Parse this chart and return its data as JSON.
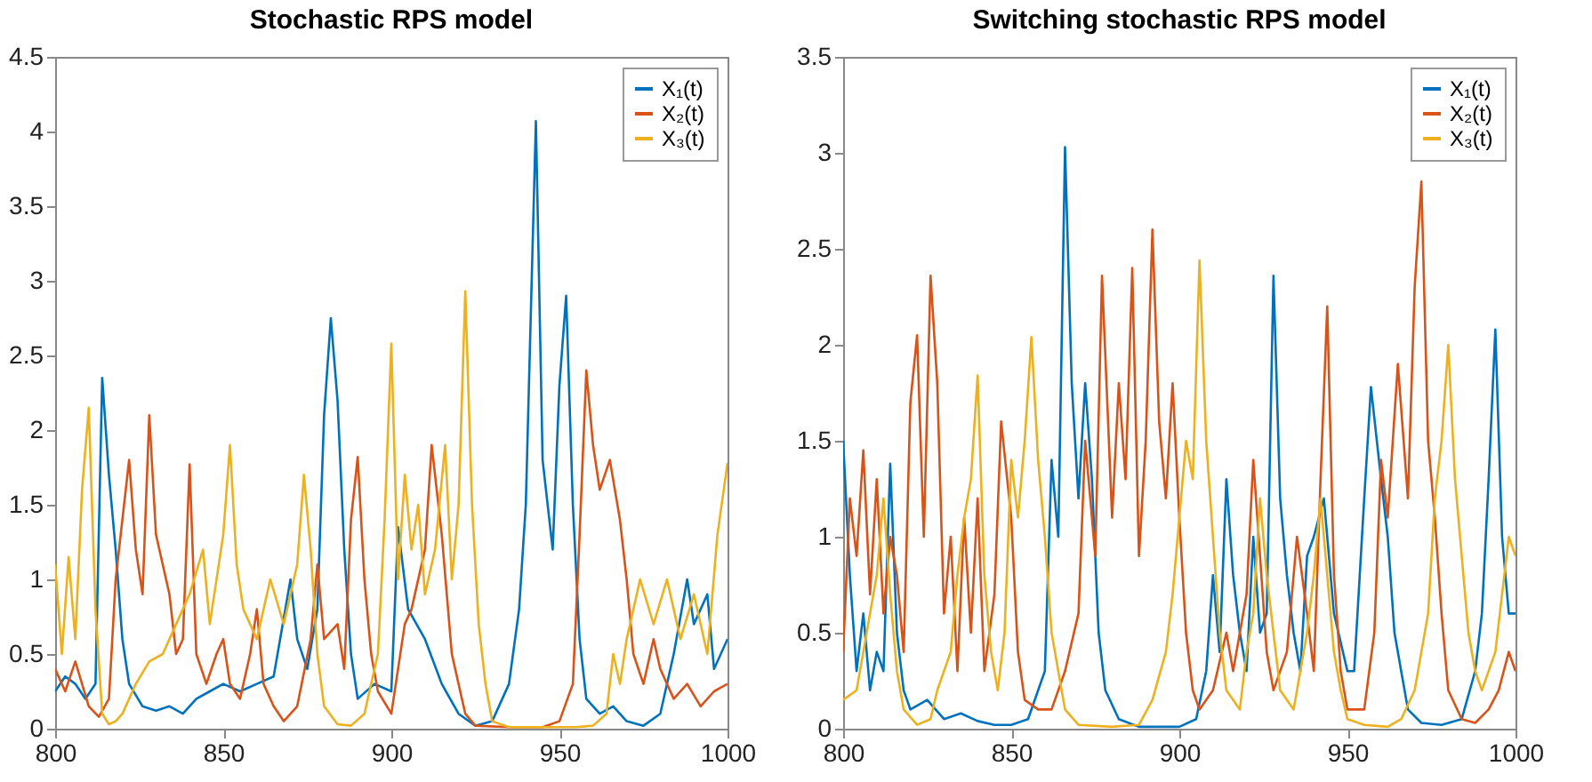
{
  "chart_data": [
    {
      "type": "line",
      "title": "Stochastic RPS model",
      "xlim": [
        800,
        1000
      ],
      "xticks": [
        800,
        850,
        900,
        950,
        1000
      ],
      "ylim": [
        0,
        4.5
      ],
      "yticks": [
        0,
        0.5,
        1,
        1.5,
        2,
        2.5,
        3,
        3.5,
        4,
        4.5
      ],
      "grid": false,
      "legend": "top right",
      "series": [
        {
          "name": "X₁(t)",
          "color": "#0072bd",
          "x": [
            800,
            803,
            806,
            809,
            812,
            814,
            816,
            818,
            820,
            822,
            826,
            830,
            834,
            838,
            842,
            846,
            850,
            855,
            860,
            865,
            870,
            872,
            875,
            878,
            880,
            882,
            884,
            886,
            888,
            890,
            895,
            900,
            902,
            905,
            910,
            915,
            920,
            925,
            930,
            935,
            938,
            940,
            943,
            945,
            948,
            950,
            952,
            954,
            956,
            958,
            962,
            966,
            970,
            975,
            980,
            984,
            988,
            990,
            994,
            996,
            1000
          ],
          "values": [
            0.25,
            0.35,
            0.3,
            0.2,
            0.3,
            2.35,
            1.7,
            1.2,
            0.6,
            0.3,
            0.15,
            0.12,
            0.15,
            0.1,
            0.2,
            0.25,
            0.3,
            0.25,
            0.3,
            0.35,
            1.0,
            0.6,
            0.4,
            0.8,
            2.1,
            2.75,
            2.2,
            1.2,
            0.5,
            0.2,
            0.3,
            0.25,
            1.35,
            0.8,
            0.6,
            0.3,
            0.1,
            0.02,
            0.05,
            0.3,
            0.8,
            1.5,
            4.07,
            1.8,
            1.2,
            2.3,
            2.9,
            1.5,
            0.6,
            0.2,
            0.1,
            0.15,
            0.05,
            0.02,
            0.1,
            0.5,
            1.0,
            0.7,
            0.9,
            0.4,
            0.6
          ]
        },
        {
          "name": "X₂(t)",
          "color": "#d95319",
          "x": [
            800,
            803,
            806,
            810,
            813,
            816,
            818,
            820,
            822,
            824,
            826,
            828,
            830,
            832,
            834,
            836,
            838,
            840,
            842,
            845,
            848,
            850,
            852,
            855,
            858,
            860,
            862,
            865,
            868,
            872,
            876,
            878,
            880,
            884,
            886,
            888,
            890,
            892,
            894,
            896,
            900,
            904,
            906,
            910,
            912,
            915,
            918,
            920,
            922,
            925,
            935,
            945,
            950,
            954,
            956,
            958,
            960,
            962,
            965,
            968,
            970,
            972,
            975,
            978,
            980,
            984,
            988,
            992,
            996,
            1000
          ],
          "values": [
            0.4,
            0.25,
            0.45,
            0.15,
            0.08,
            0.2,
            1.0,
            1.4,
            1.8,
            1.2,
            0.9,
            2.1,
            1.3,
            1.1,
            0.9,
            0.5,
            0.6,
            1.77,
            0.5,
            0.3,
            0.5,
            0.6,
            0.3,
            0.2,
            0.5,
            0.8,
            0.3,
            0.15,
            0.05,
            0.15,
            0.6,
            1.1,
            0.6,
            0.7,
            0.4,
            1.4,
            1.82,
            1.0,
            0.5,
            0.25,
            0.1,
            0.7,
            0.8,
            1.2,
            1.9,
            1.3,
            0.5,
            0.3,
            0.1,
            0.02,
            0.01,
            0.01,
            0.05,
            0.3,
            1.3,
            2.4,
            1.9,
            1.6,
            1.8,
            1.4,
            1.0,
            0.5,
            0.3,
            0.6,
            0.4,
            0.2,
            0.3,
            0.15,
            0.25,
            0.3
          ]
        },
        {
          "name": "X₃(t)",
          "color": "#edb120",
          "x": [
            800,
            802,
            804,
            806,
            808,
            810,
            812,
            814,
            816,
            818,
            820,
            824,
            828,
            832,
            836,
            840,
            844,
            846,
            850,
            852,
            854,
            856,
            860,
            864,
            868,
            872,
            874,
            876,
            878,
            880,
            884,
            888,
            892,
            896,
            898,
            900,
            902,
            904,
            906,
            908,
            910,
            913,
            916,
            918,
            920,
            922,
            924,
            926,
            928,
            930,
            935,
            945,
            955,
            960,
            964,
            966,
            968,
            970,
            974,
            978,
            982,
            986,
            990,
            994,
            997,
            1000
          ],
          "values": [
            1.1,
            0.5,
            1.15,
            0.6,
            1.6,
            2.15,
            0.8,
            0.1,
            0.03,
            0.05,
            0.1,
            0.3,
            0.45,
            0.5,
            0.7,
            0.9,
            1.2,
            0.7,
            1.3,
            1.9,
            1.1,
            0.8,
            0.6,
            1.0,
            0.7,
            1.1,
            1.7,
            1.2,
            0.5,
            0.15,
            0.03,
            0.02,
            0.1,
            0.5,
            1.4,
            2.58,
            1.0,
            1.7,
            1.2,
            1.5,
            0.9,
            1.2,
            1.9,
            1.0,
            1.5,
            2.93,
            1.5,
            0.7,
            0.3,
            0.05,
            0.01,
            0.01,
            0.01,
            0.02,
            0.1,
            0.5,
            0.3,
            0.6,
            1.0,
            0.7,
            1.0,
            0.6,
            0.9,
            0.5,
            1.3,
            1.78
          ]
        }
      ]
    },
    {
      "type": "line",
      "title": "Switching stochastic RPS model",
      "xlim": [
        800,
        1000
      ],
      "xticks": [
        800,
        850,
        900,
        950,
        1000
      ],
      "ylim": [
        0,
        3.5
      ],
      "yticks": [
        0,
        0.5,
        1,
        1.5,
        2,
        2.5,
        3,
        3.5
      ],
      "grid": false,
      "legend": "top right",
      "series": [
        {
          "name": "X₁(t)",
          "color": "#0072bd",
          "x": [
            800,
            802,
            804,
            806,
            808,
            810,
            812,
            814,
            816,
            818,
            820,
            825,
            830,
            835,
            840,
            845,
            850,
            855,
            860,
            862,
            864,
            866,
            868,
            870,
            872,
            874,
            876,
            878,
            882,
            888,
            895,
            900,
            905,
            908,
            910,
            912,
            914,
            916,
            918,
            920,
            922,
            924,
            926,
            928,
            930,
            932,
            934,
            936,
            938,
            940,
            943,
            946,
            950,
            952,
            955,
            957,
            960,
            962,
            964,
            966,
            968,
            972,
            978,
            984,
            988,
            990,
            992,
            994,
            996,
            998,
            1000
          ],
          "values": [
            1.5,
            0.8,
            0.3,
            0.6,
            0.2,
            0.4,
            0.3,
            1.38,
            0.5,
            0.2,
            0.1,
            0.15,
            0.05,
            0.08,
            0.04,
            0.02,
            0.02,
            0.05,
            0.3,
            1.4,
            1.0,
            3.03,
            1.8,
            1.2,
            1.8,
            1.3,
            0.5,
            0.2,
            0.05,
            0.01,
            0.01,
            0.01,
            0.05,
            0.3,
            0.8,
            0.4,
            1.3,
            0.8,
            0.5,
            0.3,
            1.0,
            0.5,
            0.6,
            2.36,
            1.2,
            0.8,
            0.5,
            0.3,
            0.9,
            1.0,
            1.2,
            0.6,
            0.3,
            0.3,
            1.2,
            1.78,
            1.3,
            1.0,
            0.5,
            0.3,
            0.1,
            0.03,
            0.02,
            0.05,
            0.3,
            0.6,
            1.3,
            2.08,
            1.0,
            0.6,
            0.6
          ]
        },
        {
          "name": "X₂(t)",
          "color": "#d95319",
          "x": [
            800,
            802,
            804,
            806,
            808,
            810,
            812,
            814,
            816,
            818,
            820,
            822,
            824,
            826,
            828,
            830,
            832,
            834,
            836,
            838,
            840,
            842,
            845,
            847,
            850,
            852,
            854,
            858,
            862,
            866,
            870,
            872,
            875,
            877,
            880,
            882,
            884,
            886,
            888,
            890,
            892,
            894,
            896,
            898,
            900,
            902,
            904,
            906,
            910,
            914,
            916,
            920,
            922,
            924,
            926,
            928,
            932,
            935,
            938,
            940,
            942,
            944,
            946,
            948,
            950,
            955,
            958,
            960,
            962,
            965,
            968,
            970,
            972,
            974,
            976,
            978,
            980,
            984,
            988,
            992,
            995,
            998,
            1000
          ],
          "values": [
            0.4,
            1.2,
            0.9,
            1.45,
            0.7,
            1.3,
            0.6,
            1.0,
            0.8,
            0.4,
            1.7,
            2.05,
            1.0,
            2.36,
            1.8,
            0.6,
            1.0,
            0.3,
            1.1,
            0.5,
            1.2,
            0.3,
            0.7,
            1.6,
            1.1,
            0.4,
            0.15,
            0.1,
            0.1,
            0.3,
            0.6,
            1.5,
            0.9,
            2.36,
            1.1,
            1.8,
            1.3,
            2.4,
            0.9,
            1.5,
            2.6,
            1.6,
            1.2,
            1.8,
            1.1,
            0.5,
            0.2,
            0.1,
            0.2,
            0.5,
            0.3,
            0.7,
            1.4,
            0.9,
            0.4,
            0.2,
            0.4,
            1.0,
            0.6,
            0.3,
            1.3,
            2.2,
            0.8,
            0.3,
            0.1,
            0.1,
            0.5,
            1.4,
            1.1,
            1.9,
            1.2,
            2.3,
            2.85,
            1.5,
            1.1,
            0.6,
            0.2,
            0.05,
            0.03,
            0.1,
            0.2,
            0.4,
            0.3
          ]
        },
        {
          "name": "X₃(t)",
          "color": "#edb120",
          "x": [
            800,
            804,
            806,
            808,
            810,
            812,
            814,
            816,
            818,
            822,
            826,
            828,
            832,
            834,
            836,
            838,
            840,
            842,
            844,
            846,
            848,
            850,
            852,
            854,
            856,
            858,
            860,
            862,
            864,
            866,
            870,
            880,
            888,
            892,
            896,
            898,
            900,
            902,
            904,
            906,
            908,
            910,
            912,
            914,
            918,
            920,
            922,
            924,
            926,
            928,
            930,
            934,
            938,
            940,
            942,
            944,
            946,
            948,
            950,
            955,
            962,
            966,
            970,
            974,
            976,
            978,
            980,
            982,
            984,
            986,
            988,
            990,
            994,
            996,
            998,
            1000
          ],
          "values": [
            0.15,
            0.2,
            0.4,
            0.6,
            0.8,
            1.2,
            0.7,
            0.3,
            0.1,
            0.02,
            0.05,
            0.2,
            0.4,
            0.8,
            1.1,
            1.3,
            1.84,
            0.8,
            0.4,
            0.2,
            0.5,
            1.4,
            1.1,
            1.5,
            2.04,
            1.4,
            1.0,
            0.5,
            0.3,
            0.1,
            0.02,
            0.01,
            0.02,
            0.15,
            0.4,
            0.7,
            1.1,
            1.5,
            1.3,
            2.44,
            1.5,
            1.0,
            0.5,
            0.2,
            0.1,
            0.4,
            0.6,
            1.2,
            0.8,
            0.5,
            0.2,
            0.1,
            0.5,
            0.8,
            1.2,
            0.8,
            0.4,
            0.2,
            0.05,
            0.02,
            0.01,
            0.05,
            0.2,
            0.6,
            1.2,
            1.5,
            2.0,
            1.3,
            0.9,
            0.5,
            0.3,
            0.2,
            0.4,
            0.7,
            1.0,
            0.9
          ]
        }
      ]
    }
  ]
}
